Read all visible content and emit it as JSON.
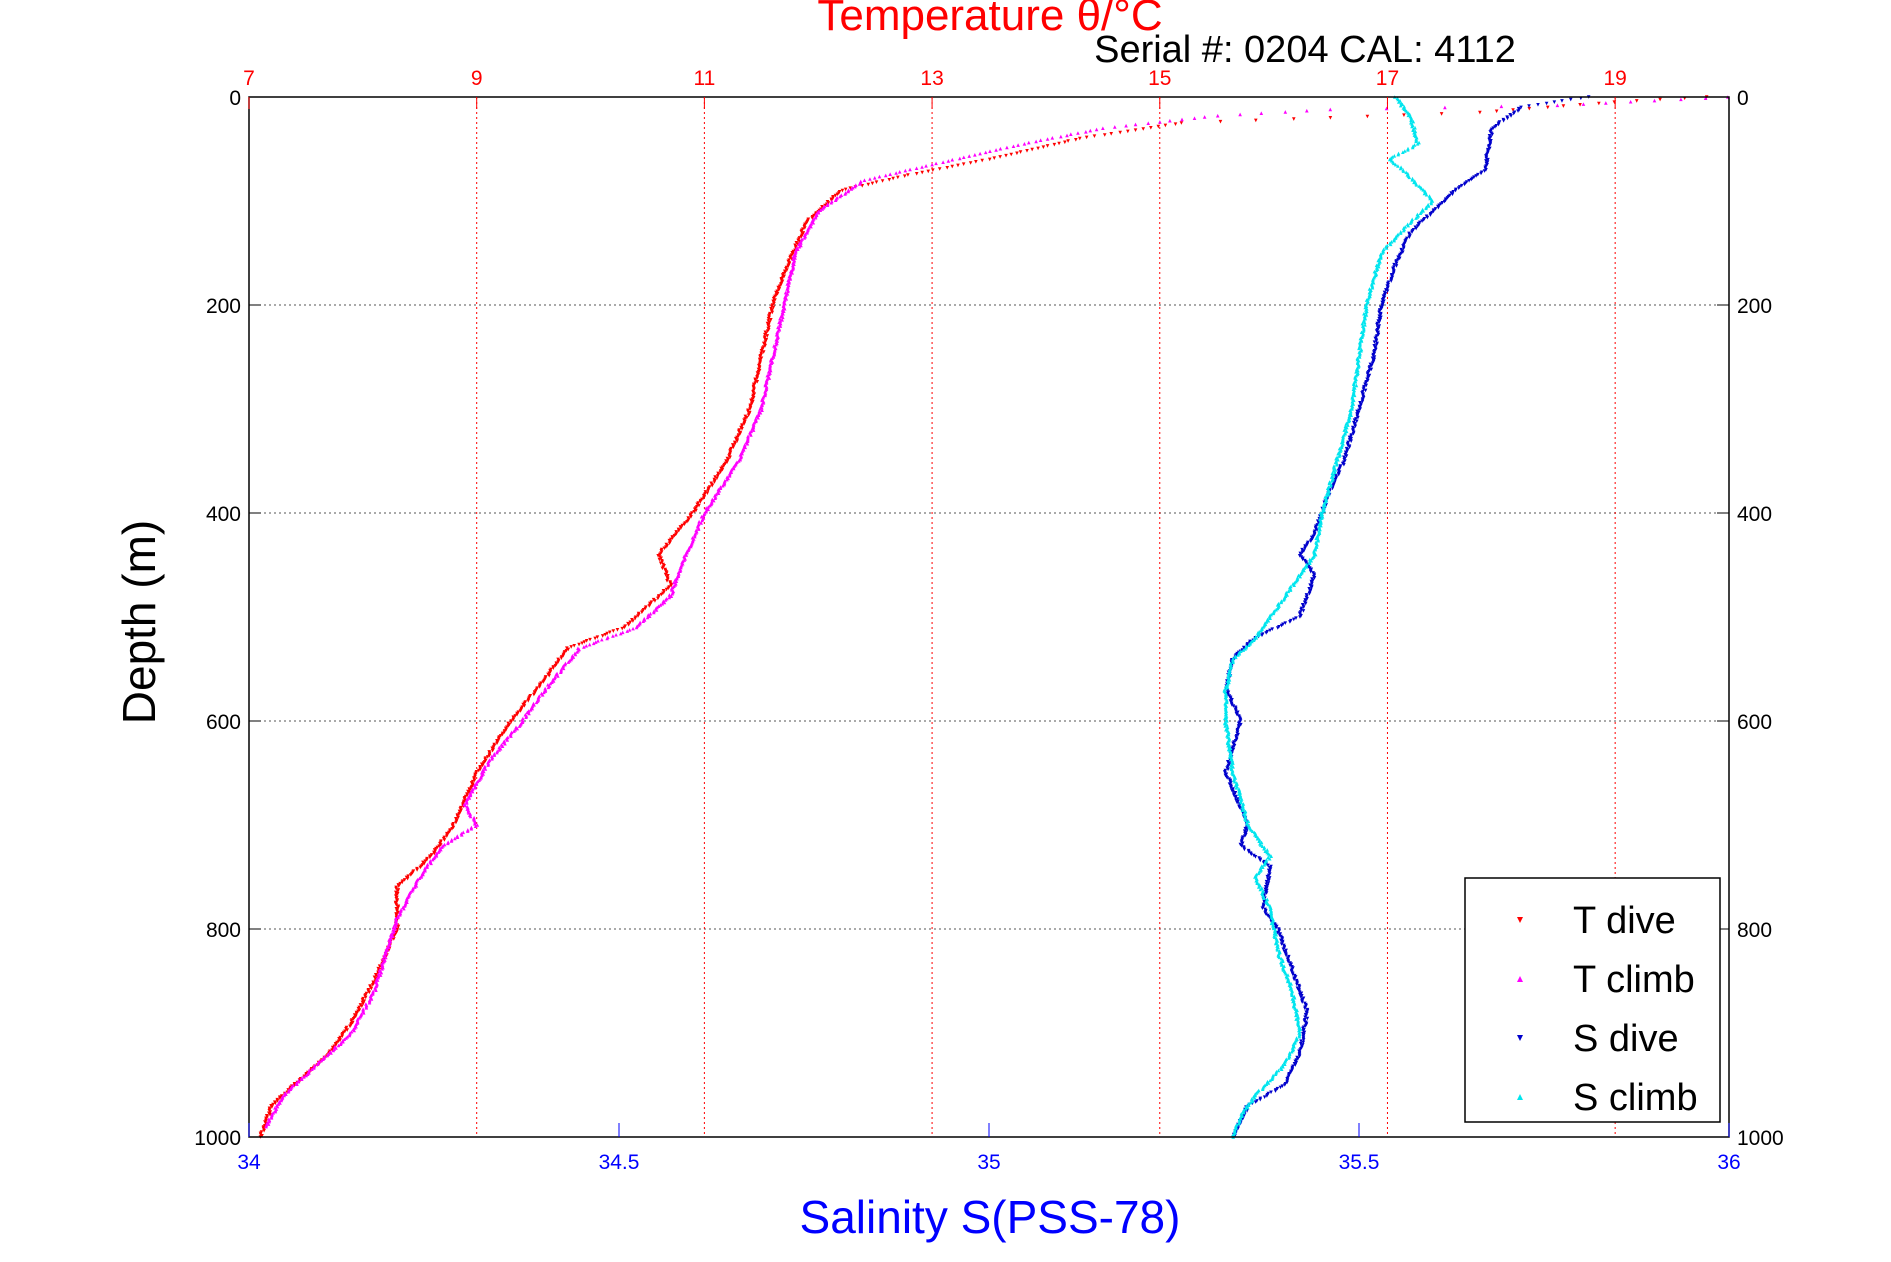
{
  "chart_data": {
    "type": "scatter",
    "title": "Temperature θ/°C",
    "subtitle": "Serial #: 0204  CAL: 4112",
    "xlabel_bottom": "Salinity S(PSS-78)",
    "xlabel_top": "Temperature θ/°C",
    "ylabel": "Depth (m)",
    "ylim": [
      0,
      1000
    ],
    "y_reversed": true,
    "xlim_bottom": [
      34,
      36
    ],
    "xlim_top": [
      7,
      20
    ],
    "yticks": [
      "0",
      "200",
      "400",
      "600",
      "800",
      "1000"
    ],
    "xticks_bottom": [
      "34",
      "34.5",
      "35",
      "35.5",
      "36"
    ],
    "xticks_top": [
      "7",
      "9",
      "11",
      "13",
      "15",
      "17",
      "19"
    ],
    "grid": true,
    "legend_position": "bottom-right",
    "colors": {
      "temperature_axis": "#ff0000",
      "salinity_axis": "#0000ff",
      "t_dive": "#ff0000",
      "t_climb": "#ff00ff",
      "s_dive": "#0000cc",
      "s_climb": "#00e5ee"
    },
    "series": [
      {
        "name": "T dive",
        "axis": "top",
        "marker": "triangle-down",
        "points": [
          [
            19.8,
            0
          ],
          [
            19.0,
            5
          ],
          [
            17.8,
            15
          ],
          [
            16.5,
            20
          ],
          [
            15.2,
            25
          ],
          [
            14.3,
            40
          ],
          [
            13.5,
            60
          ],
          [
            12.8,
            75
          ],
          [
            12.2,
            90
          ],
          [
            11.9,
            120
          ],
          [
            11.7,
            170
          ],
          [
            11.6,
            200
          ],
          [
            11.5,
            250
          ],
          [
            11.4,
            300
          ],
          [
            11.2,
            350
          ],
          [
            10.9,
            400
          ],
          [
            10.6,
            440
          ],
          [
            10.7,
            470
          ],
          [
            10.3,
            510
          ],
          [
            9.8,
            530
          ],
          [
            9.6,
            560
          ],
          [
            9.3,
            600
          ],
          [
            9.0,
            650
          ],
          [
            8.8,
            700
          ],
          [
            8.6,
            730
          ],
          [
            8.3,
            760
          ],
          [
            8.3,
            800
          ],
          [
            8.1,
            850
          ],
          [
            7.9,
            890
          ],
          [
            7.7,
            920
          ],
          [
            7.4,
            950
          ],
          [
            7.2,
            970
          ],
          [
            7.1,
            1000
          ]
        ]
      },
      {
        "name": "T climb",
        "axis": "top",
        "marker": "triangle-up",
        "points": [
          [
            20.0,
            0
          ],
          [
            18.5,
            8
          ],
          [
            16.5,
            12
          ],
          [
            15.5,
            18
          ],
          [
            14.5,
            30
          ],
          [
            13.8,
            45
          ],
          [
            13.0,
            65
          ],
          [
            12.4,
            80
          ],
          [
            12.0,
            110
          ],
          [
            11.8,
            150
          ],
          [
            11.7,
            200
          ],
          [
            11.6,
            250
          ],
          [
            11.5,
            300
          ],
          [
            11.3,
            350
          ],
          [
            11.0,
            400
          ],
          [
            10.8,
            450
          ],
          [
            10.7,
            480
          ],
          [
            10.4,
            510
          ],
          [
            9.9,
            530
          ],
          [
            9.6,
            570
          ],
          [
            9.4,
            600
          ],
          [
            9.1,
            640
          ],
          [
            8.9,
            680
          ],
          [
            9.0,
            700
          ],
          [
            8.7,
            720
          ],
          [
            8.5,
            750
          ],
          [
            8.3,
            790
          ],
          [
            8.1,
            860
          ],
          [
            7.9,
            900
          ],
          [
            7.6,
            930
          ],
          [
            7.3,
            960
          ],
          [
            7.15,
            990
          ]
        ]
      },
      {
        "name": "S dive",
        "axis": "bottom",
        "marker": "triangle-down",
        "points": [
          [
            35.81,
            0
          ],
          [
            35.72,
            10
          ],
          [
            35.68,
            30
          ],
          [
            35.67,
            70
          ],
          [
            35.63,
            90
          ],
          [
            35.6,
            110
          ],
          [
            35.57,
            130
          ],
          [
            35.55,
            160
          ],
          [
            35.53,
            200
          ],
          [
            35.52,
            250
          ],
          [
            35.5,
            300
          ],
          [
            35.48,
            350
          ],
          [
            35.46,
            380
          ],
          [
            35.44,
            420
          ],
          [
            35.42,
            440
          ],
          [
            35.44,
            460
          ],
          [
            35.43,
            480
          ],
          [
            35.42,
            500
          ],
          [
            35.36,
            520
          ],
          [
            35.33,
            540
          ],
          [
            35.32,
            570
          ],
          [
            35.34,
            600
          ],
          [
            35.32,
            650
          ],
          [
            35.35,
            700
          ],
          [
            35.34,
            720
          ],
          [
            35.38,
            740
          ],
          [
            35.37,
            780
          ],
          [
            35.39,
            800
          ],
          [
            35.41,
            840
          ],
          [
            35.43,
            880
          ],
          [
            35.42,
            920
          ],
          [
            35.4,
            950
          ],
          [
            35.35,
            970
          ],
          [
            35.33,
            1000
          ]
        ]
      },
      {
        "name": "S climb",
        "axis": "bottom",
        "marker": "triangle-up",
        "points": [
          [
            35.55,
            0
          ],
          [
            35.57,
            20
          ],
          [
            35.58,
            45
          ],
          [
            35.54,
            60
          ],
          [
            35.56,
            70
          ],
          [
            35.6,
            100
          ],
          [
            35.57,
            120
          ],
          [
            35.53,
            150
          ],
          [
            35.51,
            200
          ],
          [
            35.5,
            250
          ],
          [
            35.49,
            300
          ],
          [
            35.47,
            350
          ],
          [
            35.45,
            400
          ],
          [
            35.44,
            440
          ],
          [
            35.42,
            460
          ],
          [
            35.4,
            480
          ],
          [
            35.38,
            500
          ],
          [
            35.36,
            520
          ],
          [
            35.33,
            540
          ],
          [
            35.32,
            570
          ],
          [
            35.32,
            600
          ],
          [
            35.33,
            650
          ],
          [
            35.35,
            700
          ],
          [
            35.38,
            730
          ],
          [
            35.36,
            750
          ],
          [
            35.38,
            780
          ],
          [
            35.39,
            820
          ],
          [
            35.41,
            860
          ],
          [
            35.42,
            900
          ],
          [
            35.4,
            930
          ],
          [
            35.36,
            960
          ],
          [
            35.34,
            980
          ],
          [
            35.33,
            1000
          ]
        ]
      }
    ]
  }
}
